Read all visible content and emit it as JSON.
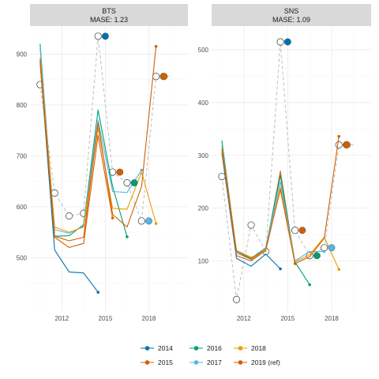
{
  "chart_data": [
    {
      "type": "line",
      "title": "BTS",
      "subtitle": "MASE: 1.23",
      "xlabel": "",
      "ylabel": "",
      "xlim": [
        2009.8,
        2020.7
      ],
      "ylim": [
        395,
        955
      ],
      "xticks": [
        2012,
        2015,
        2018
      ],
      "yticks": [
        500,
        600,
        700,
        800,
        900
      ],
      "grid": true,
      "reference": {
        "name": "2019 (ref)",
        "x": [
          2010.5,
          2011.5,
          2012.5,
          2013.5,
          2014.5,
          2015.5,
          2016.5,
          2017.5,
          2018.5,
          2019.5
        ],
        "y": [
          840,
          627,
          582,
          587,
          935,
          668,
          647,
          572,
          856,
          856
        ]
      },
      "series": [
        {
          "name": "2014",
          "color": "#0072B2",
          "x": [
            2010.5,
            2011.5,
            2012.5,
            2013.5,
            2014.5
          ],
          "y": [
            885,
            515,
            472,
            470,
            432
          ],
          "marker": {
            "x": 2015.0,
            "y": 935
          }
        },
        {
          "name": "2015",
          "color": "#D55E00",
          "x": [
            2010.5,
            2011.5,
            2012.5,
            2013.5,
            2014.5,
            2015.5
          ],
          "y": [
            882,
            540,
            520,
            528,
            740,
            578
          ],
          "marker": {
            "x": 2016.0,
            "y": 668
          }
        },
        {
          "name": "2016",
          "color": "#009E73",
          "x": [
            2010.5,
            2011.5,
            2012.5,
            2013.5,
            2014.5,
            2015.5,
            2016.5
          ],
          "y": [
            920,
            542,
            543,
            565,
            790,
            640,
            541
          ],
          "marker": {
            "x": 2017.0,
            "y": 647
          }
        },
        {
          "name": "2017",
          "color": "#56B4E9",
          "x": [
            2010.5,
            2011.5,
            2012.5,
            2013.5,
            2014.5,
            2015.5,
            2016.5,
            2017.5
          ],
          "y": [
            912,
            555,
            548,
            562,
            770,
            630,
            628,
            672
          ],
          "marker": {
            "x": 2018.0,
            "y": 572
          }
        },
        {
          "name": "2018",
          "color": "#E69F00",
          "x": [
            2010.5,
            2011.5,
            2012.5,
            2013.5,
            2014.5,
            2015.5,
            2016.5,
            2017.5,
            2018.5
          ],
          "y": [
            893,
            560,
            550,
            560,
            755,
            597,
            595,
            668,
            567
          ],
          "marker": {
            "x": 2019.0,
            "y": 856
          }
        },
        {
          "name": "2019 (ref)",
          "color": "#D55E00",
          "x": [
            2010.5,
            2011.5,
            2012.5,
            2013.5,
            2014.5,
            2015.5,
            2016.5,
            2017.5,
            2018.5
          ],
          "y": [
            890,
            542,
            533,
            540,
            765,
            585,
            560,
            640,
            915
          ],
          "marker": {
            "x": 2019.0,
            "y": 856
          }
        }
      ]
    },
    {
      "type": "line",
      "title": "SNS",
      "subtitle": "MASE: 1.09",
      "xlabel": "",
      "ylabel": "",
      "xlim": [
        2009.8,
        2020.7
      ],
      "ylim": [
        5,
        545
      ],
      "xticks": [
        2012,
        2015,
        2018
      ],
      "yticks": [
        100,
        200,
        300,
        400,
        500
      ],
      "grid": true,
      "reference": {
        "name": "2019 (ref)",
        "x": [
          2010.5,
          2011.5,
          2012.5,
          2013.5,
          2014.5,
          2015.5,
          2016.5,
          2017.5,
          2018.5,
          2019.5
        ],
        "y": [
          260,
          27,
          168,
          118,
          515,
          158,
          110,
          125,
          320,
          320
        ]
      },
      "series": [
        {
          "name": "2014",
          "color": "#0072B2",
          "x": [
            2010.5,
            2011.5,
            2012.5,
            2013.5,
            2014.5
          ],
          "y": [
            305,
            105,
            90,
            113,
            85
          ],
          "marker": {
            "x": 2015.0,
            "y": 515
          }
        },
        {
          "name": "2015",
          "color": "#D55E00",
          "x": [
            2010.5,
            2011.5,
            2012.5,
            2013.5,
            2014.5,
            2015.5
          ],
          "y": [
            310,
            110,
            100,
            120,
            270,
            95
          ],
          "marker": {
            "x": 2016.0,
            "y": 158
          }
        },
        {
          "name": "2016",
          "color": "#009E73",
          "x": [
            2010.5,
            2011.5,
            2012.5,
            2013.5,
            2014.5,
            2015.5,
            2016.5
          ],
          "y": [
            328,
            118,
            105,
            125,
            262,
            98,
            55
          ],
          "marker": {
            "x": 2017.0,
            "y": 110
          }
        },
        {
          "name": "2017",
          "color": "#56B4E9",
          "x": [
            2010.5,
            2011.5,
            2012.5,
            2013.5,
            2014.5,
            2015.5,
            2016.5,
            2017.5
          ],
          "y": [
            320,
            115,
            103,
            125,
            250,
            100,
            118,
            118
          ],
          "marker": {
            "x": 2018.0,
            "y": 125
          }
        },
        {
          "name": "2018",
          "color": "#E69F00",
          "x": [
            2010.5,
            2011.5,
            2012.5,
            2013.5,
            2014.5,
            2015.5,
            2016.5,
            2017.5,
            2018.5
          ],
          "y": [
            316,
            120,
            107,
            118,
            240,
            98,
            112,
            145,
            84
          ],
          "marker": {
            "x": 2019.0,
            "y": 320
          }
        },
        {
          "name": "2019 (ref)",
          "color": "#D55E00",
          "x": [
            2010.5,
            2011.5,
            2012.5,
            2013.5,
            2014.5,
            2015.5,
            2016.5,
            2017.5,
            2018.5
          ],
          "y": [
            312,
            118,
            103,
            122,
            235,
            95,
            108,
            143,
            336
          ],
          "marker": {
            "x": 2019.0,
            "y": 320
          }
        }
      ]
    }
  ],
  "legend": {
    "position": "bottom",
    "items": [
      {
        "label": "2014",
        "color": "#0072B2"
      },
      {
        "label": "2015",
        "color": "#D55E00"
      },
      {
        "label": "2016",
        "color": "#009E73"
      },
      {
        "label": "2017",
        "color": "#56B4E9"
      },
      {
        "label": "2018",
        "color": "#E69F00"
      },
      {
        "label": "2019 (ref)",
        "color": "#D55E00"
      }
    ]
  },
  "style": {
    "strip_bg": "#d9d9d9",
    "grid_major": "#ebebeb",
    "grid_minor": "#f5f5f5",
    "axis_text": "#4d4d4d",
    "reference_line": "#bdbdbd"
  }
}
